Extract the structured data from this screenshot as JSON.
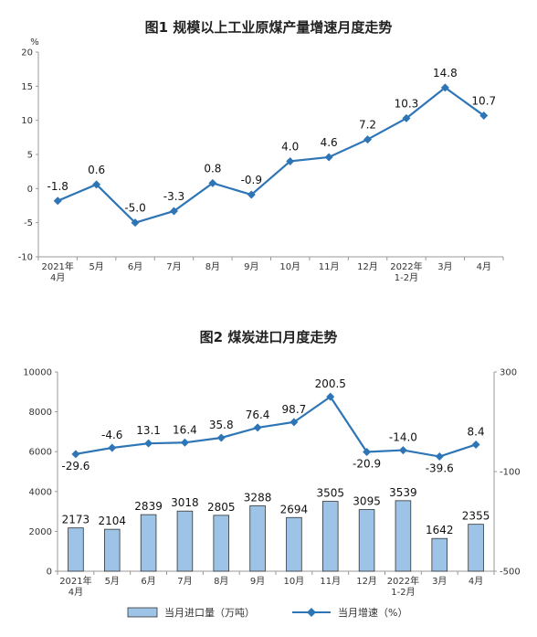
{
  "chart_data": [
    {
      "type": "line",
      "title": "图1  规模以上工业原煤产量增速月度走势",
      "ylabel": "%",
      "ylim": [
        -10,
        20
      ],
      "yticks": [
        "20",
        "15",
        "10",
        "5",
        "0",
        "-5",
        "-10"
      ],
      "categories": [
        "2021年\n4月",
        "5月",
        "6月",
        "7月",
        "8月",
        "9月",
        "10月",
        "11月",
        "12月",
        "2022年\n1-2月",
        "3月",
        "4月"
      ],
      "series": [
        {
          "values": [
            -1.8,
            0.6,
            -5.0,
            -3.3,
            0.8,
            -0.9,
            4.0,
            4.6,
            7.2,
            10.3,
            14.8,
            10.7
          ],
          "labels": [
            "-1.8",
            "0.6",
            "-5.0",
            "-3.3",
            "0.8",
            "-0.9",
            "4.0",
            "4.6",
            "7.2",
            "10.3",
            "14.8",
            "10.7"
          ],
          "color": "#2e75b6"
        }
      ]
    },
    {
      "type": "bar",
      "title": "图2  煤炭进口月度走势",
      "ylim": [
        0,
        10000
      ],
      "y2lim": [
        -500,
        300
      ],
      "yticks": [
        "10000",
        "8000",
        "6000",
        "4000",
        "2000",
        "0"
      ],
      "y2ticks": [
        "300",
        "-100",
        "-500"
      ],
      "categories": [
        "2021年\n4月",
        "5月",
        "6月",
        "7月",
        "8月",
        "9月",
        "10月",
        "11月",
        "12月",
        "2022年\n1-2月",
        "3月",
        "4月"
      ],
      "series": [
        {
          "name": "当月进口量（万吨）",
          "type": "bar",
          "values": [
            2173,
            2104,
            2839,
            3018,
            2805,
            3288,
            2694,
            3505,
            3095,
            3539,
            1642,
            2355
          ],
          "labels": [
            "2173",
            "2104",
            "2839",
            "3018",
            "2805",
            "3288",
            "2694",
            "3505",
            "3095",
            "3539",
            "1642",
            "2355"
          ],
          "color": "#9dc3e6"
        },
        {
          "name": "当月增速（%）",
          "type": "line",
          "axis": "right",
          "values": [
            -29.6,
            -4.6,
            13.1,
            16.4,
            35.8,
            76.4,
            98.7,
            200.5,
            -20.9,
            -14.0,
            -39.6,
            8.4
          ],
          "labels": [
            "-29.6",
            "-4.6",
            "13.1",
            "16.4",
            "35.8",
            "76.4",
            "98.7",
            "200.5",
            "-20.9",
            "-14.0",
            "-39.6",
            "8.4"
          ],
          "color": "#2e75b6"
        }
      ],
      "legend": "bottom"
    }
  ]
}
